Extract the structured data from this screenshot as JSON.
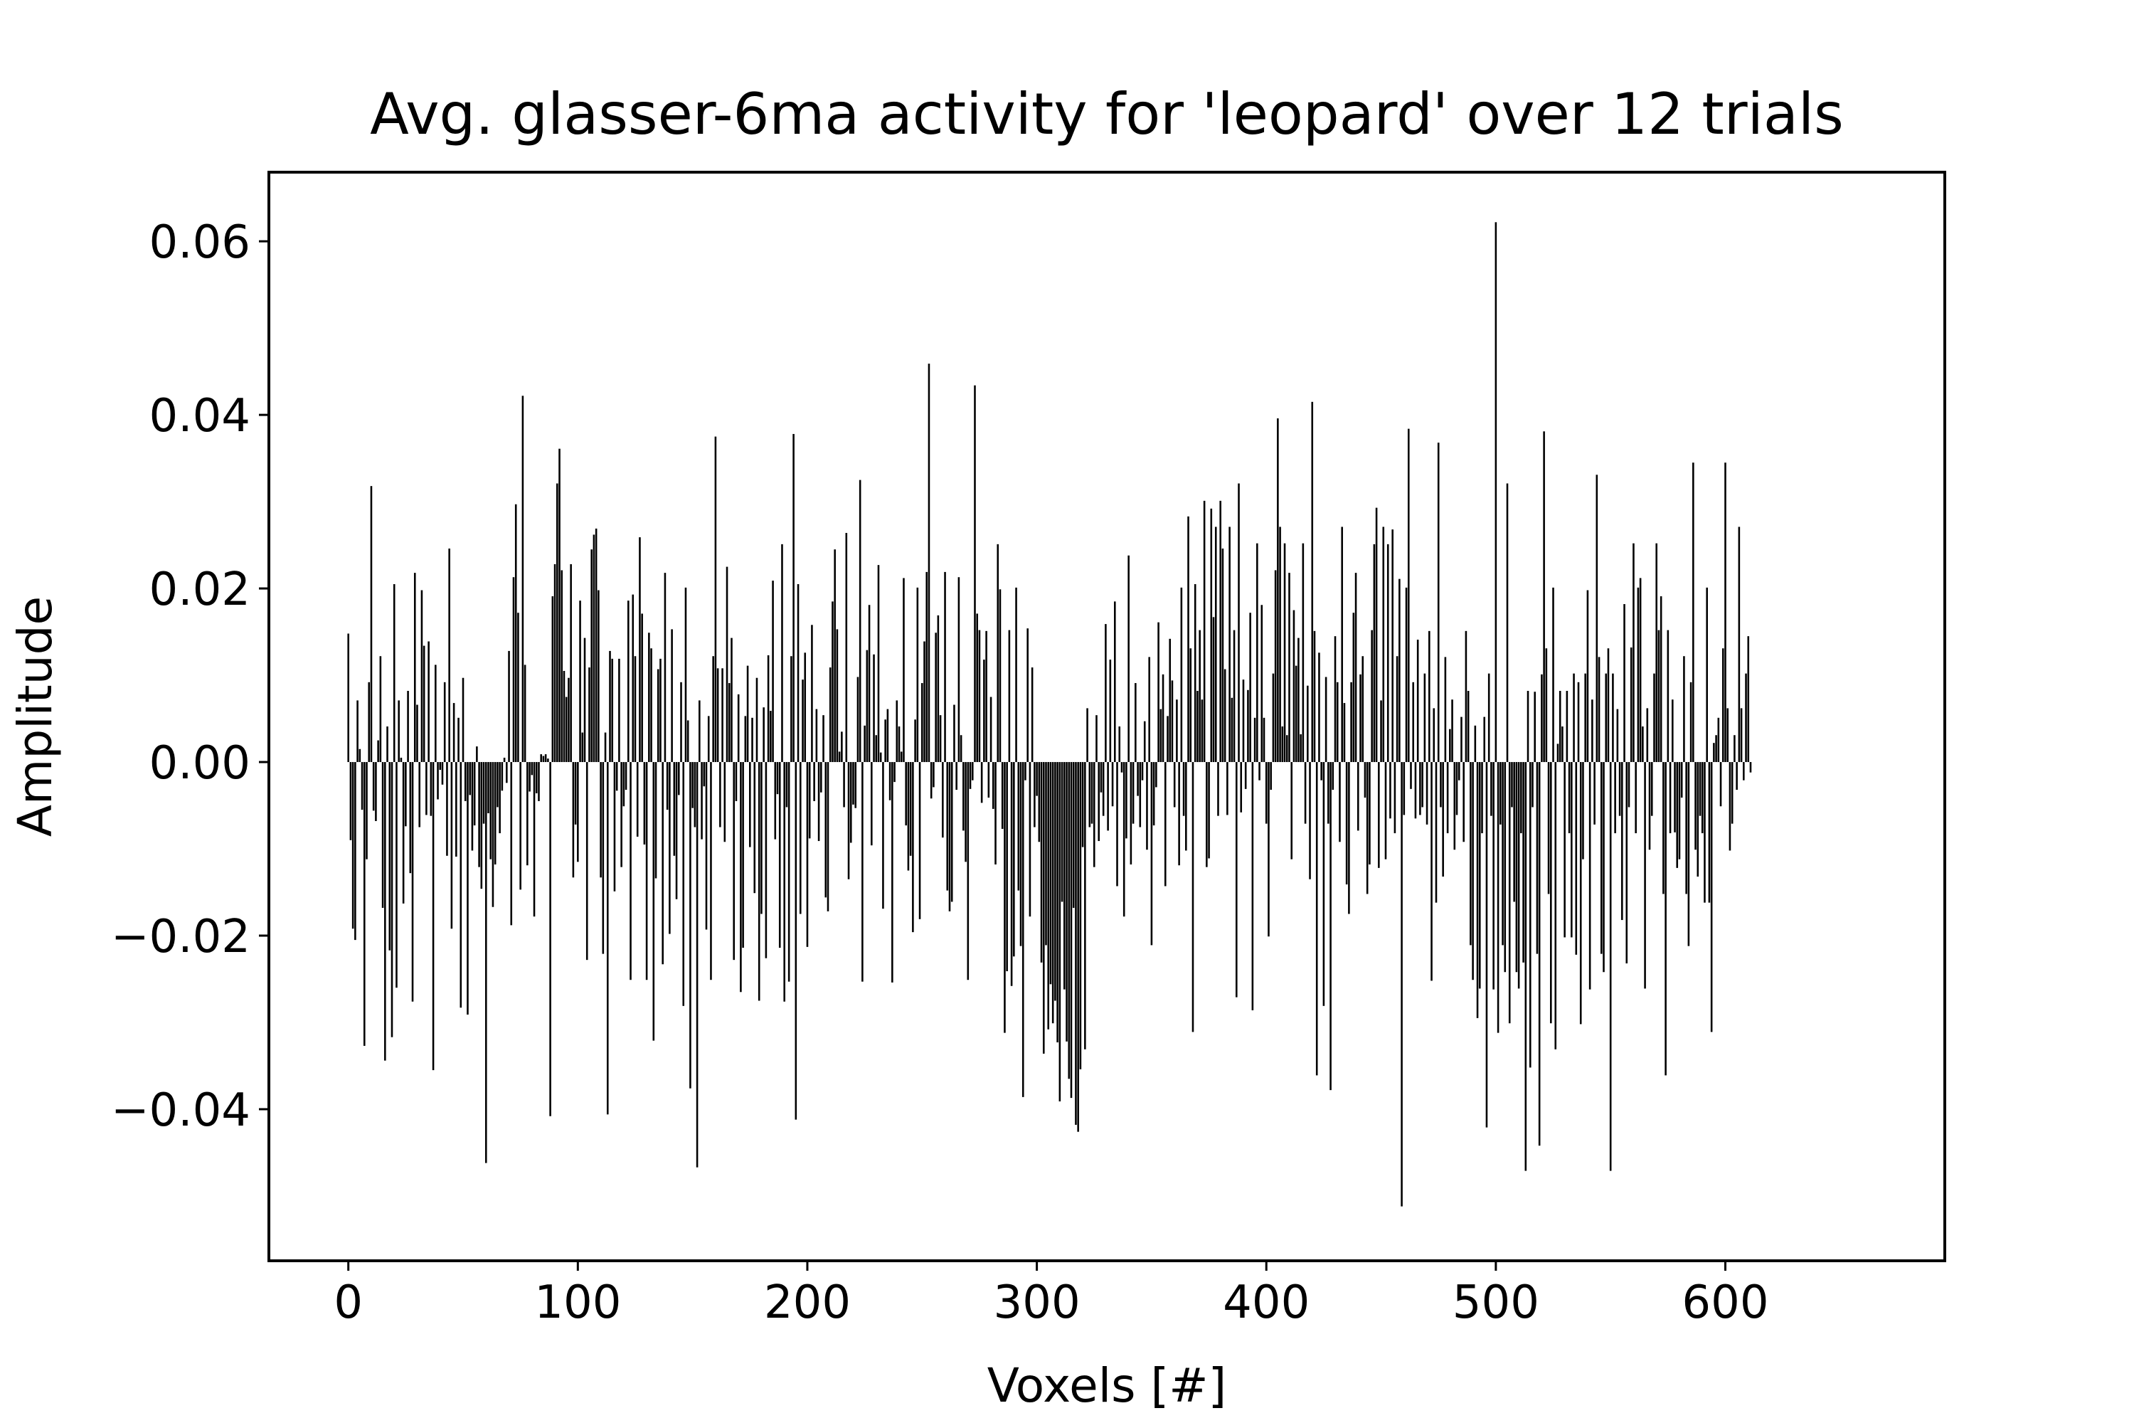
{
  "chart_data": {
    "type": "bar",
    "title": "Avg. glasser-6ma activity for 'leopard' over 12 trials",
    "xlabel": "Voxels [#]",
    "ylabel": "Amplitude",
    "xlim": [
      -34,
      695
    ],
    "ylim": [
      -0.0573,
      0.0678
    ],
    "xticks": [
      0,
      100,
      200,
      300,
      400,
      500,
      600
    ],
    "xtick_labels": [
      "0",
      "100",
      "200",
      "300",
      "400",
      "500",
      "600"
    ],
    "yticks": [
      -0.04,
      -0.02,
      0.0,
      0.02,
      0.04,
      0.06
    ],
    "ytick_labels": [
      "−0.04",
      "−0.02",
      "0.00",
      "0.02",
      "0.04",
      "0.06"
    ],
    "grid": false,
    "legend": "none",
    "bar_color": "#000000",
    "series": [
      {
        "x_start": 0,
        "x_step": 1,
        "values": [
          0.0148,
          -0.009,
          -0.0192,
          -0.0205,
          0.0071,
          0.0015,
          -0.0055,
          -0.0327,
          -0.0112,
          0.0092,
          0.0318,
          -0.0056,
          -0.0068,
          0.0025,
          0.0122,
          -0.0168,
          -0.0344,
          0.0041,
          -0.0217,
          -0.0317,
          0.0205,
          -0.026,
          0.0071,
          0.0005,
          -0.0163,
          -0.0074,
          0.0082,
          -0.0128,
          -0.0276,
          0.0218,
          0.0066,
          -0.0075,
          0.0198,
          0.0134,
          -0.0061,
          0.0139,
          -0.0062,
          -0.0355,
          0.0112,
          -0.0043,
          -0.0009,
          -0.0026,
          0.0092,
          -0.0108,
          0.0246,
          -0.0192,
          0.0068,
          -0.0109,
          0.0051,
          -0.0283,
          0.0097,
          -0.0045,
          -0.0291,
          -0.0038,
          -0.0102,
          -0.0073,
          0.0018,
          -0.0121,
          -0.0146,
          -0.0071,
          -0.0462,
          -0.0059,
          -0.0112,
          -0.0167,
          -0.0118,
          -0.0052,
          -0.0082,
          -0.0033,
          0.0005,
          -0.0024,
          0.0128,
          -0.0188,
          0.0213,
          0.0297,
          0.0172,
          -0.0147,
          0.0422,
          0.0112,
          -0.0119,
          -0.0034,
          -0.0015,
          -0.0178,
          -0.0036,
          -0.0045,
          0.0009,
          0.0007,
          0.0009,
          0.0004,
          -0.0408,
          0.0191,
          0.0228,
          0.0321,
          0.0361,
          0.0221,
          0.0105,
          0.0075,
          0.0097,
          0.0228,
          -0.0133,
          -0.0072,
          -0.0115,
          0.0186,
          0.0034,
          0.0143,
          -0.0228,
          0.0109,
          0.0245,
          0.0262,
          0.0269,
          0.0198,
          -0.0133,
          -0.0221,
          0.0034,
          -0.0406,
          0.0128,
          0.0119,
          -0.0149,
          -0.0033,
          0.0119,
          -0.0121,
          -0.0051,
          -0.0032,
          0.0186,
          -0.0251,
          0.0193,
          0.0122,
          -0.0086,
          0.0259,
          0.0171,
          -0.0095,
          -0.0251,
          0.0149,
          0.0131,
          -0.0321,
          -0.0134,
          0.0107,
          0.0119,
          -0.0233,
          0.0218,
          -0.0055,
          -0.0198,
          0.0153,
          -0.0108,
          -0.0158,
          -0.0038,
          0.0092,
          -0.0281,
          0.0201,
          0.0048,
          -0.0376,
          -0.0053,
          -0.0075,
          -0.0467,
          0.0071,
          -0.0089,
          -0.0028,
          -0.0193,
          0.0053,
          -0.0251,
          0.0122,
          0.0375,
          0.0108,
          -0.0075,
          0.0108,
          -0.0092,
          0.0225,
          0.0091,
          0.0143,
          -0.0228,
          -0.0045,
          0.0078,
          -0.0265,
          -0.0214,
          0.0053,
          0.0111,
          -0.0098,
          0.0051,
          -0.0151,
          0.0097,
          -0.0275,
          -0.0175,
          0.0063,
          -0.0226,
          0.0123,
          0.0059,
          0.0209,
          -0.0089,
          -0.0037,
          -0.0214,
          0.0251,
          -0.0276,
          -0.0052,
          -0.0253,
          0.0122,
          0.0378,
          -0.0412,
          0.0205,
          -0.0175,
          0.0095,
          0.0126,
          -0.0213,
          -0.0088,
          0.0158,
          -0.0045,
          0.0061,
          -0.0091,
          -0.0035,
          0.0054,
          -0.0156,
          -0.0172,
          0.0109,
          0.0185,
          0.0245,
          0.0153,
          0.0012,
          0.0035,
          -0.0052,
          0.0264,
          -0.0135,
          -0.0093,
          -0.0049,
          -0.0053,
          0.0098,
          0.0325,
          -0.0253,
          0.0042,
          0.0129,
          0.0181,
          -0.0096,
          0.0124,
          0.0031,
          0.0227,
          0.0011,
          -0.0169,
          0.0049,
          0.0061,
          -0.0044,
          -0.0254,
          -0.0023,
          0.0071,
          0.0041,
          0.0012,
          0.0212,
          -0.0073,
          -0.0125,
          -0.0108,
          -0.0196,
          0.0049,
          0.0201,
          -0.0181,
          0.0091,
          0.0139,
          0.0219,
          0.0459,
          -0.0042,
          -0.0029,
          0.0149,
          0.0169,
          0.0054,
          -0.0087,
          0.0219,
          -0.0148,
          -0.0172,
          -0.0161,
          0.0066,
          -0.0032,
          0.0213,
          0.0031,
          -0.0079,
          -0.0115,
          -0.0251,
          -0.0031,
          -0.0021,
          0.0434,
          0.0171,
          0.0152,
          -0.0047,
          0.0118,
          0.0151,
          -0.0041,
          0.0075,
          -0.0054,
          -0.0118,
          0.0251,
          0.0199,
          -0.0077,
          -0.0312,
          -0.0241,
          0.0152,
          -0.0258,
          -0.0224,
          0.0201,
          -0.0148,
          -0.0212,
          -0.0386,
          -0.0021,
          0.0154,
          -0.0178,
          0.0109,
          -0.0075,
          -0.0039,
          -0.0092,
          -0.0231,
          -0.0336,
          -0.0211,
          -0.0308,
          -0.0256,
          -0.0301,
          -0.0275,
          -0.0323,
          -0.0391,
          -0.0161,
          -0.0262,
          -0.0322,
          -0.0365,
          -0.0387,
          -0.0168,
          -0.0418,
          -0.0426,
          -0.0354,
          -0.0098,
          -0.0331,
          0.0062,
          -0.0075,
          -0.0071,
          -0.0121,
          0.0054,
          -0.0091,
          -0.0035,
          -0.0062,
          0.0159,
          -0.0079,
          0.0118,
          -0.0051,
          0.0185,
          -0.0143,
          0.0041,
          -0.0012,
          -0.0178,
          -0.0088,
          0.0238,
          -0.0118,
          -0.0071,
          0.0091,
          -0.0039,
          -0.0075,
          -0.0021,
          0.0047,
          -0.0101,
          0.0121,
          -0.0211,
          -0.0073,
          -0.0029,
          0.0161,
          0.0061,
          0.0101,
          -0.0143,
          0.0053,
          0.0142,
          0.0094,
          -0.0052,
          0.0072,
          -0.0119,
          0.0201,
          -0.0062,
          -0.0102,
          0.0283,
          0.0131,
          -0.0311,
          0.0205,
          0.0082,
          0.0152,
          0.0072,
          0.0301,
          -0.0121,
          -0.0111,
          0.0292,
          0.0167,
          0.0271,
          -0.0062,
          0.0301,
          0.0246,
          0.0107,
          -0.0061,
          0.0271,
          0.0074,
          0.0152,
          -0.0271,
          0.0321,
          -0.0058,
          0.0095,
          -0.0031,
          0.0083,
          0.0172,
          -0.0286,
          0.0051,
          0.0252,
          -0.0021,
          0.0181,
          0.0051,
          -0.0071,
          -0.0201,
          -0.0032,
          0.0102,
          0.0221,
          0.0396,
          0.0271,
          0.0041,
          0.0252,
          0.0031,
          0.0218,
          -0.0112,
          0.0175,
          0.0111,
          0.0143,
          0.0032,
          0.0252,
          -0.0071,
          0.0088,
          -0.0135,
          0.0415,
          0.0151,
          -0.0361,
          0.0126,
          -0.0021,
          -0.0281,
          0.0098,
          -0.0071,
          -0.0378,
          -0.0032,
          0.0145,
          0.0092,
          -0.0092,
          0.0271,
          0.0068,
          -0.0141,
          -0.0175,
          0.0092,
          0.0172,
          0.0218,
          -0.0079,
          0.0101,
          0.0122,
          -0.0041,
          -0.0152,
          -0.0118,
          0.0152,
          0.0251,
          0.0293,
          -0.0122,
          0.0071,
          0.0271,
          -0.0112,
          0.0251,
          -0.0065,
          0.0268,
          -0.0082,
          0.0122,
          0.0211,
          -0.0512,
          -0.0061,
          0.0201,
          0.0384,
          -0.0031,
          0.0092,
          -0.0065,
          0.0141,
          -0.0061,
          -0.0052,
          0.0102,
          -0.0072,
          0.0151,
          -0.0252,
          0.0062,
          -0.0162,
          0.0368,
          -0.0052,
          -0.0132,
          0.0121,
          -0.0082,
          0.0038,
          0.0072,
          -0.0101,
          -0.0061,
          -0.0021,
          0.0052,
          -0.0092,
          0.0151,
          0.0082,
          -0.0211,
          -0.0251,
          0.0042,
          -0.0295,
          -0.0261,
          -0.0082,
          0.0052,
          -0.0421,
          0.0102,
          -0.0062,
          -0.0262,
          0.0622,
          -0.0312,
          -0.0072,
          -0.0211,
          -0.0242,
          0.0321,
          -0.0301,
          -0.0052,
          -0.0161,
          -0.0242,
          -0.0261,
          -0.0082,
          -0.0231,
          -0.0471,
          0.0082,
          -0.0352,
          -0.0052,
          0.0081,
          -0.0221,
          -0.0442,
          0.0101,
          0.0381,
          0.0131,
          -0.0152,
          -0.0301,
          0.0201,
          -0.0331,
          0.0021,
          0.0082,
          0.0041,
          -0.0202,
          0.0082,
          -0.0082,
          -0.0202,
          0.0102,
          -0.0222,
          0.0092,
          -0.0302,
          -0.0112,
          0.0102,
          0.0198,
          -0.0262,
          0.0072,
          -0.0072,
          0.0331,
          0.0121,
          -0.0221,
          -0.0242,
          0.0102,
          0.0131,
          -0.0471,
          0.0102,
          -0.0082,
          0.0061,
          -0.0062,
          -0.0182,
          0.0182,
          -0.0232,
          -0.0052,
          0.0132,
          0.0252,
          -0.0082,
          0.0201,
          0.0212,
          0.0041,
          -0.0261,
          0.0062,
          -0.0101,
          -0.0062,
          0.0102,
          0.0252,
          0.0152,
          0.0191,
          -0.0152,
          -0.0361,
          0.0152,
          -0.0082,
          0.0072,
          -0.0081,
          -0.0122,
          -0.0112,
          -0.0041,
          0.0122,
          -0.0152,
          -0.0212,
          0.0092,
          0.0345,
          -0.0101,
          -0.0132,
          -0.0062,
          -0.0082,
          -0.0162,
          0.0201,
          -0.0162,
          -0.0311,
          0.0022,
          0.0031,
          0.0051,
          -0.0051,
          0.0131,
          0.0345,
          0.0062,
          -0.0102,
          -0.0071,
          0.0031,
          -0.0032,
          0.0271,
          0.0062,
          -0.0021,
          0.0102,
          0.0145,
          -0.0012
        ]
      }
    ]
  }
}
